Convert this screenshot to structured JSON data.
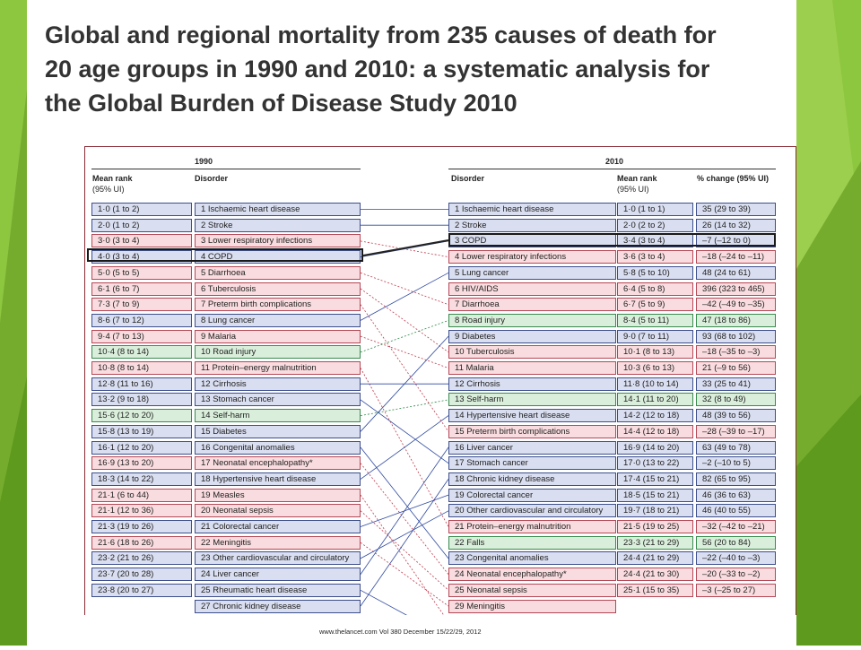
{
  "slide": {
    "title_lines": [
      "Global and regional mortality from 235 causes of death for",
      "20 age groups in 1990 and 2010: a systematic analysis for",
      "the Global Burden of Disease Study 2010"
    ],
    "accent_color": "#8dc63f",
    "accent_dark": "#5e9a1e"
  },
  "table": {
    "left_year": "1990",
    "right_year": "2010",
    "headers": {
      "mean_rank_left": "Mean rank",
      "ui_left": "(95% UI)",
      "disorder_left": "Disorder",
      "disorder_right": "Disorder",
      "mean_rank_right": "Mean rank",
      "ui_right": "(95% UI)",
      "pct_change": "% change (95% UI)"
    },
    "left_rows": [
      {
        "rank": "1·0 (1 to 2)",
        "disorder": "1 Ischaemic heart disease",
        "cat": "blue"
      },
      {
        "rank": "2·0 (1 to 2)",
        "disorder": "2 Stroke",
        "cat": "blue"
      },
      {
        "rank": "3·0 (3 to 4)",
        "disorder": "3 Lower respiratory infections",
        "cat": "red"
      },
      {
        "rank": "4·0 (3 to 4)",
        "disorder": "4 COPD",
        "cat": "blue"
      },
      {
        "rank": "5·0 (5 to 5)",
        "disorder": "5 Diarrhoea",
        "cat": "red"
      },
      {
        "rank": "6·1 (6 to 7)",
        "disorder": "6 Tuberculosis",
        "cat": "red"
      },
      {
        "rank": "7·3 (7 to 9)",
        "disorder": "7 Preterm birth complications",
        "cat": "red"
      },
      {
        "rank": "8·6 (7 to 12)",
        "disorder": "8 Lung cancer",
        "cat": "blue"
      },
      {
        "rank": "9·4 (7 to 13)",
        "disorder": "9 Malaria",
        "cat": "red"
      },
      {
        "rank": "10·4 (8 to 14)",
        "disorder": "10 Road injury",
        "cat": "green"
      },
      {
        "rank": "10·8 (8 to 14)",
        "disorder": "11 Protein–energy malnutrition",
        "cat": "red"
      },
      {
        "rank": "12·8 (11 to 16)",
        "disorder": "12 Cirrhosis",
        "cat": "blue"
      },
      {
        "rank": "13·2 (9 to 18)",
        "disorder": "13 Stomach cancer",
        "cat": "blue"
      },
      {
        "rank": "15·6 (12 to 20)",
        "disorder": "14 Self-harm",
        "cat": "green"
      },
      {
        "rank": "15·8 (13 to 19)",
        "disorder": "15 Diabetes",
        "cat": "blue"
      },
      {
        "rank": "16·1 (12 to 20)",
        "disorder": "16 Congenital anomalies",
        "cat": "blue"
      },
      {
        "rank": "16·9 (13 to 20)",
        "disorder": "17 Neonatal encephalopathy*",
        "cat": "red"
      },
      {
        "rank": "18·3 (14 to 22)",
        "disorder": "18 Hypertensive heart disease",
        "cat": "blue"
      },
      {
        "rank": "21·1 (6 to 44)",
        "disorder": "19 Measles",
        "cat": "red"
      },
      {
        "rank": "21·1 (12 to 36)",
        "disorder": "20 Neonatal sepsis",
        "cat": "red"
      },
      {
        "rank": "21·3 (19 to 26)",
        "disorder": "21 Colorectal cancer",
        "cat": "blue"
      },
      {
        "rank": "21·6 (18 to 26)",
        "disorder": "22 Meningitis",
        "cat": "red"
      },
      {
        "rank": "23·2 (21 to 26)",
        "disorder": "23 Other cardiovascular and circulatory",
        "cat": "blue"
      },
      {
        "rank": "23·7 (20 to 28)",
        "disorder": "24 Liver cancer",
        "cat": "blue"
      },
      {
        "rank": "23·8 (20 to 27)",
        "disorder": "25 Rheumatic heart disease",
        "cat": "blue"
      },
      {
        "rank": "",
        "disorder": "27 Chronic kidney disease",
        "cat": "blue"
      }
    ],
    "right_rows": [
      {
        "disorder": "1 Ischaemic heart disease",
        "rank": "1·0 (1 to 1)",
        "change": "35 (29 to 39)",
        "cat": "blue"
      },
      {
        "disorder": "2 Stroke",
        "rank": "2·0 (2 to 2)",
        "change": "26 (14 to 32)",
        "cat": "blue"
      },
      {
        "disorder": "3 COPD",
        "rank": "3·4 (3 to 4)",
        "change": "–7 (–12 to 0)",
        "cat": "blue"
      },
      {
        "disorder": "4 Lower respiratory infections",
        "rank": "3·6 (3 to 4)",
        "change": "–18 (–24 to –11)",
        "cat": "red"
      },
      {
        "disorder": "5 Lung cancer",
        "rank": "5·8 (5 to 10)",
        "change": "48 (24 to 61)",
        "cat": "blue"
      },
      {
        "disorder": "6 HIV/AIDS",
        "rank": "6·4 (5 to 8)",
        "change": "396 (323 to 465)",
        "cat": "red"
      },
      {
        "disorder": "7 Diarrhoea",
        "rank": "6·7 (5 to 9)",
        "change": "–42 (–49 to –35)",
        "cat": "red"
      },
      {
        "disorder": "8 Road injury",
        "rank": "8·4 (5 to 11)",
        "change": "47 (18 to 86)",
        "cat": "green"
      },
      {
        "disorder": "9 Diabetes",
        "rank": "9·0 (7 to 11)",
        "change": "93 (68 to 102)",
        "cat": "blue"
      },
      {
        "disorder": "10 Tuberculosis",
        "rank": "10·1 (8 to 13)",
        "change": "–18 (–35 to –3)",
        "cat": "red"
      },
      {
        "disorder": "11 Malaria",
        "rank": "10·3 (6 to 13)",
        "change": "21 (–9 to 56)",
        "cat": "red"
      },
      {
        "disorder": "12 Cirrhosis",
        "rank": "11·8 (10 to 14)",
        "change": "33 (25 to 41)",
        "cat": "blue"
      },
      {
        "disorder": "13 Self-harm",
        "rank": "14·1 (11 to 20)",
        "change": "32 (8 to 49)",
        "cat": "green"
      },
      {
        "disorder": "14 Hypertensive heart disease",
        "rank": "14·2 (12 to 18)",
        "change": "48 (39 to 56)",
        "cat": "blue"
      },
      {
        "disorder": "15 Preterm birth complications",
        "rank": "14·4 (12 to 18)",
        "change": "–28 (–39 to –17)",
        "cat": "red"
      },
      {
        "disorder": "16 Liver cancer",
        "rank": "16·9 (14 to 20)",
        "change": "63 (49 to 78)",
        "cat": "blue"
      },
      {
        "disorder": "17 Stomach cancer",
        "rank": "17·0 (13 to 22)",
        "change": "–2 (–10 to 5)",
        "cat": "blue"
      },
      {
        "disorder": "18 Chronic kidney disease",
        "rank": "17·4 (15 to 21)",
        "change": "82 (65 to 95)",
        "cat": "blue"
      },
      {
        "disorder": "19 Colorectal cancer",
        "rank": "18·5 (15 to 21)",
        "change": "46 (36 to 63)",
        "cat": "blue"
      },
      {
        "disorder": "20 Other cardiovascular and circulatory",
        "rank": "19·7 (18 to 21)",
        "change": "46 (40 to 55)",
        "cat": "blue"
      },
      {
        "disorder": "21 Protein–energy malnutrition",
        "rank": "21·5 (19 to 25)",
        "change": "–32 (–42 to –21)",
        "cat": "red"
      },
      {
        "disorder": "22 Falls",
        "rank": "23·3 (21 to 29)",
        "change": "56 (20 to 84)",
        "cat": "green"
      },
      {
        "disorder": "23 Congenital anomalies",
        "rank": "24·4 (21 to 29)",
        "change": "–22 (–40 to –3)",
        "cat": "blue"
      },
      {
        "disorder": "24 Neonatal encephalopathy*",
        "rank": "24·4 (21 to 30)",
        "change": "–20 (–33 to –2)",
        "cat": "red"
      },
      {
        "disorder": "25 Neonatal sepsis",
        "rank": "25·1 (15 to 35)",
        "change": "–3 (–25 to 27)",
        "cat": "red"
      },
      {
        "disorder": "29 Meningitis",
        "rank": "",
        "change": "",
        "cat": "red"
      }
    ],
    "connections": [
      [
        0,
        0
      ],
      [
        1,
        1
      ],
      [
        2,
        3
      ],
      [
        3,
        2
      ],
      [
        4,
        6
      ],
      [
        5,
        9
      ],
      [
        6,
        14
      ],
      [
        7,
        4
      ],
      [
        8,
        10
      ],
      [
        9,
        7
      ],
      [
        10,
        20
      ],
      [
        11,
        11
      ],
      [
        12,
        16
      ],
      [
        13,
        12
      ],
      [
        14,
        8
      ],
      [
        15,
        22
      ],
      [
        16,
        23
      ],
      [
        17,
        13
      ],
      [
        18,
        26
      ],
      [
        19,
        24
      ],
      [
        20,
        18
      ],
      [
        21,
        25
      ],
      [
        22,
        19
      ],
      [
        23,
        15
      ],
      [
        24,
        27
      ],
      [
        25,
        17
      ]
    ]
  },
  "footer": {
    "citation": "www.thelancet.com  Vol 380  December 15/22/29, 2012"
  }
}
